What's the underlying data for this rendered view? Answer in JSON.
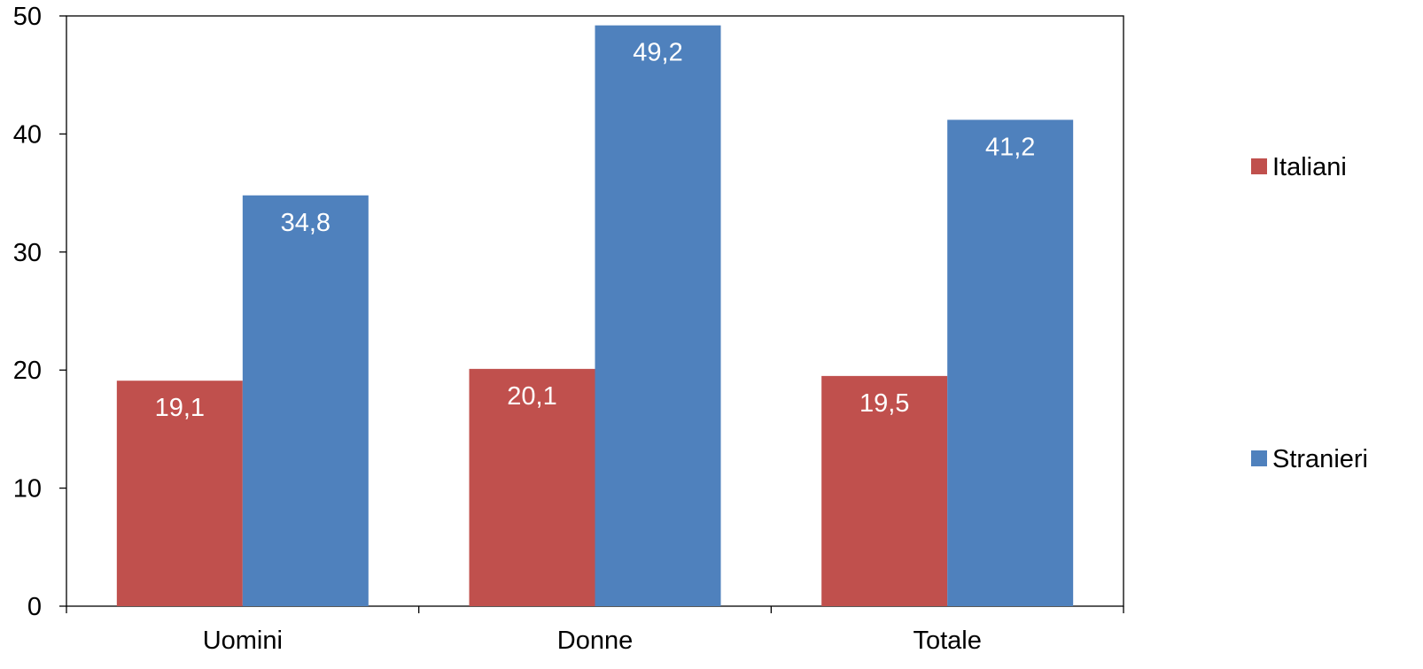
{
  "chart_data": {
    "type": "bar",
    "categories": [
      "Uomini",
      "Donne",
      "Totale"
    ],
    "series": [
      {
        "name": "Italiani",
        "color": "#c0504d",
        "values": [
          19.1,
          20.1,
          19.5
        ],
        "labels": [
          "19,1",
          "20,1",
          "19,5"
        ]
      },
      {
        "name": "Stranieri",
        "color": "#4f81bd",
        "values": [
          34.8,
          49.2,
          41.2
        ],
        "labels": [
          "34,8",
          "49,2",
          "41,2"
        ]
      }
    ],
    "ylim": [
      0,
      50
    ],
    "yticks": [
      0,
      10,
      20,
      30,
      40,
      50
    ],
    "ytick_labels": [
      "0",
      "10",
      "20",
      "30",
      "40",
      "50"
    ],
    "title": "",
    "xlabel": "",
    "ylabel": "",
    "grid": false,
    "legend_position": "right"
  }
}
